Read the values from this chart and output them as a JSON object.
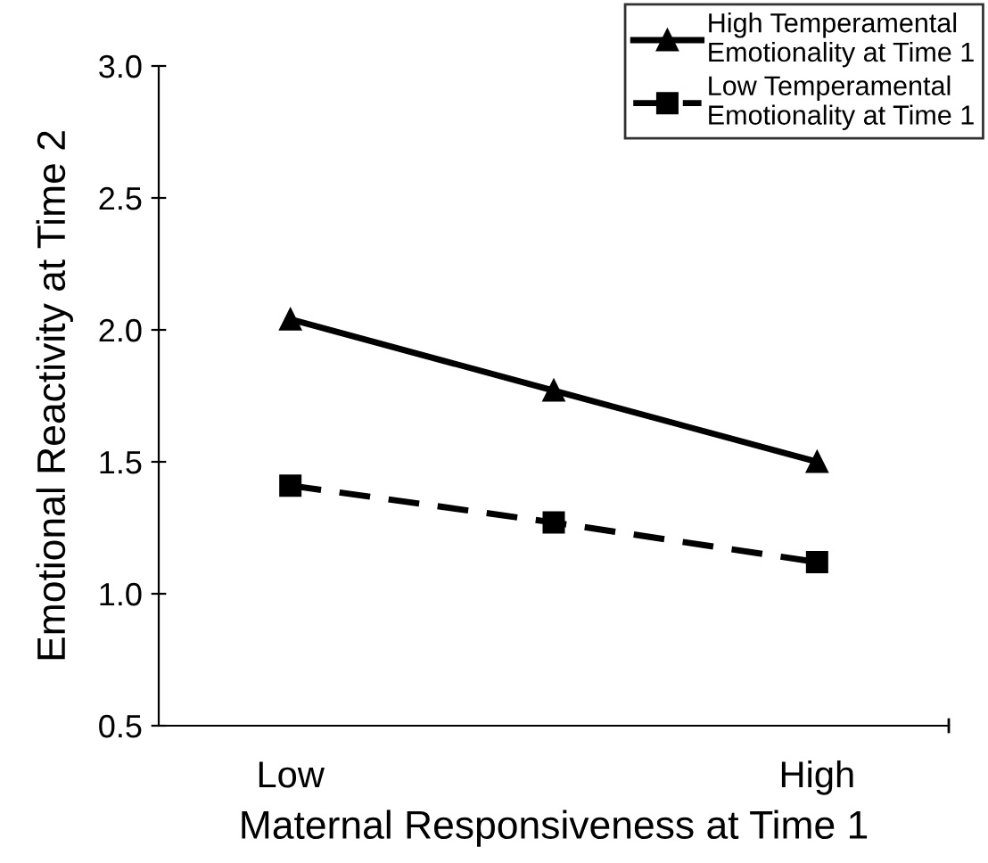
{
  "chart_data": {
    "type": "line",
    "xlabel": "Maternal Responsiveness at Time 1",
    "ylabel": "Emotional Reactivity at Time 2",
    "categories": [
      "Low",
      null,
      "High"
    ],
    "series": [
      {
        "name": "High Temperamental\nEmotionality at Time 1",
        "color": "#000000",
        "values": [
          2.04,
          1.77,
          1.5
        ],
        "marker": "triangle",
        "line_style": "solid"
      },
      {
        "name": "Low Temperamental\nEmotionality at Time 1",
        "color": "#000000",
        "values": [
          1.41,
          1.27,
          1.12
        ],
        "marker": "square",
        "line_style": "dashed"
      }
    ],
    "ylim": [
      0.5,
      3.0
    ],
    "yticks": [
      {
        "value": 0.5,
        "label": "0.5"
      },
      {
        "value": 1.0,
        "label": "1.0"
      },
      {
        "value": 1.5,
        "label": "1.5"
      },
      {
        "value": 2.0,
        "label": "2.0"
      },
      {
        "value": 2.5,
        "label": "2.5"
      },
      {
        "value": 3.0,
        "label": "3.0"
      }
    ],
    "grid": false,
    "legend": "top right"
  }
}
